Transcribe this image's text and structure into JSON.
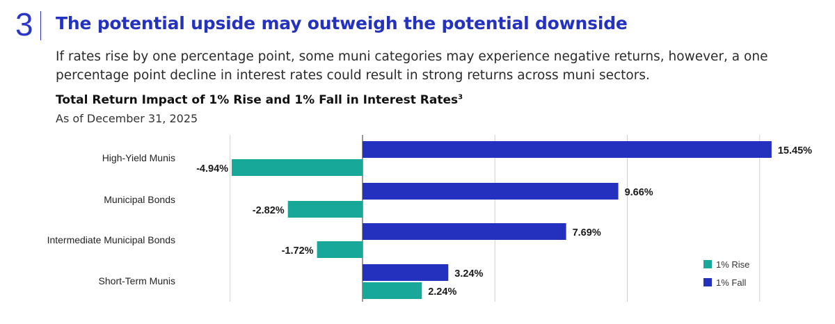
{
  "header": {
    "step_number": "3",
    "headline": "The potential upside may outweigh the potential downside",
    "intro": "If rates rise by one percentage point, some muni categories may experience negative returns, however, a one percentage point decline in interest rates could result in strong returns across muni sectors."
  },
  "chart_data": {
    "type": "bar",
    "orientation": "horizontal",
    "title": "Total Return Impact of 1% Rise and 1% Fall in Interest Rates",
    "title_footnote": "3",
    "subtitle": "As of December 31, 2025",
    "categories": [
      "High-Yield Munis",
      "Municipal Bonds",
      "Intermediate Municipal Bonds",
      "Short-Term Munis"
    ],
    "series": [
      {
        "name": "1% Fall",
        "color": "#2430be",
        "values": [
          15.45,
          9.66,
          7.69,
          3.24
        ],
        "labels": [
          "15.45%",
          "9.66%",
          "7.69%",
          "3.24%"
        ]
      },
      {
        "name": "1% Rise",
        "color": "#17a89a",
        "values": [
          -4.94,
          -2.82,
          -1.72,
          2.24
        ],
        "labels": [
          "-4.94%",
          "-2.82%",
          "-1.72%",
          "2.24%"
        ]
      }
    ],
    "xlim": [
      -10,
      20
    ],
    "gridlines": [
      -5,
      0,
      5,
      10,
      15
    ],
    "grid": true,
    "legend": {
      "position": "bottom-right",
      "order": [
        "1% Rise",
        "1% Fall"
      ]
    }
  }
}
